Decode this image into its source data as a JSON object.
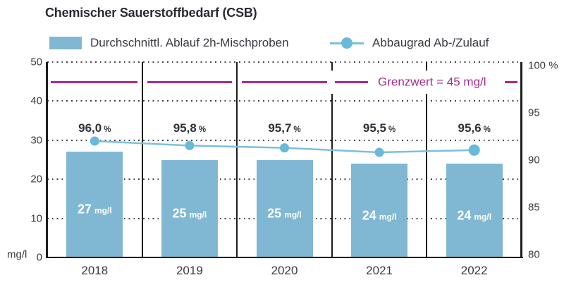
{
  "title": "Chemischer Sauerstoffbedarf (CSB)",
  "legend": {
    "bar_label": "Durchschnittl. Ablauf 2h-Mischproben",
    "line_label": "Abbaugrad Ab-/Zulauf"
  },
  "axes": {
    "left_unit": "mg/l",
    "left_ticks": [
      "50",
      "40",
      "30",
      "20",
      "10",
      "0"
    ],
    "right_ticks": [
      "100 %",
      "95",
      "90",
      "85",
      "80"
    ]
  },
  "limit_label": "Grenzwert = 45 mg/l",
  "years": [
    "2018",
    "2019",
    "2020",
    "2021",
    "2022"
  ],
  "bar_values": [
    "27",
    "25",
    "25",
    "24",
    "24"
  ],
  "bar_unit": "mg/l",
  "pct_values": [
    "96,0",
    "95,8",
    "95,7",
    "95,5",
    "95,6"
  ],
  "pct_suffix": "%",
  "colors": {
    "bar": "#80b8d3",
    "line": "#7cc0de",
    "marker": "#68b9da",
    "limit": "#a72b8a"
  },
  "chart_data": {
    "type": "combo",
    "title": "Chemischer Sauerstoffbedarf (CSB)",
    "categories": [
      "2018",
      "2019",
      "2020",
      "2021",
      "2022"
    ],
    "series": [
      {
        "name": "Durchschnittl. Ablauf 2h-Mischproben",
        "type": "bar",
        "axis": "left",
        "unit": "mg/l",
        "values": [
          27,
          25,
          25,
          24,
          24
        ]
      },
      {
        "name": "Abbaugrad Ab-/Zulauf",
        "type": "line",
        "axis": "right",
        "unit": "%",
        "values": [
          96.0,
          95.8,
          95.7,
          95.5,
          95.6
        ]
      }
    ],
    "left_axis": {
      "label": "mg/l",
      "range": [
        0,
        50
      ],
      "ticks": [
        0,
        10,
        20,
        30,
        40,
        50
      ]
    },
    "right_axis": {
      "label": "%",
      "range": [
        80,
        100
      ],
      "ticks": [
        80,
        85,
        90,
        95,
        100
      ]
    },
    "annotations": [
      {
        "type": "limit-line",
        "label": "Grenzwert = 45 mg/l",
        "value": 45,
        "axis": "left"
      }
    ],
    "grid": "dotted-horizontal",
    "legend_position": "top"
  }
}
